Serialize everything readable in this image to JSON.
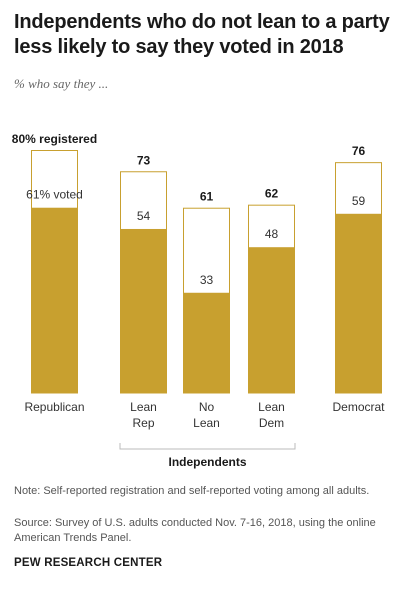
{
  "title": "Independents who do not lean to a party less likely to say they voted in 2018",
  "subtitle": "% who say they ...",
  "note": "Note: Self-reported registration and self-reported voting among all adults.",
  "source": "Source: Survey of U.S. adults conducted Nov. 7-16, 2018, using the online American Trends Panel.",
  "credit": "PEW RESEARCH CENTER",
  "colors": {
    "voted": "#c8a02f",
    "registered_outline": "#c8a02f",
    "bracket": "#bbbbbb"
  },
  "chart_data": {
    "type": "bar",
    "categories": [
      [
        "Republican"
      ],
      [
        "Lean",
        "Rep"
      ],
      [
        "No",
        "Lean"
      ],
      [
        "Lean",
        "Dem"
      ],
      [
        "Democrat"
      ]
    ],
    "series": [
      {
        "name": "registered",
        "values": [
          80,
          73,
          61,
          62,
          76
        ]
      },
      {
        "name": "voted",
        "values": [
          61,
          54,
          33,
          48,
          59
        ]
      }
    ],
    "registered_labels": [
      "80% registered",
      "73",
      "61",
      "62",
      "76"
    ],
    "voted_labels": [
      "61% voted",
      "54",
      "33",
      "48",
      "59"
    ],
    "group_label": "Independents",
    "ylim": [
      0,
      80
    ]
  }
}
